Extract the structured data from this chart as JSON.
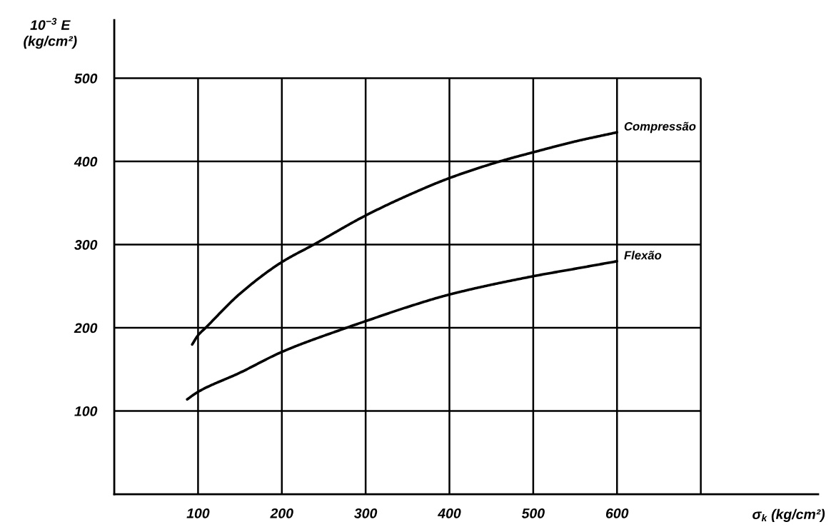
{
  "chart_data": {
    "type": "line",
    "xlabel": "σ$_{k}$ (kg/cm²)",
    "ylabel": "10$^{−3}$ E\n(kg/cm²)",
    "xlim": [
      0,
      840
    ],
    "ylim": [
      0,
      570
    ],
    "xticks": [
      100,
      200,
      300,
      400,
      500,
      600,
      {
        "value": 700,
        "label": null
      }
    ],
    "yticks": [
      100,
      200,
      300,
      400,
      500
    ],
    "grid": true,
    "series": [
      {
        "name": "Compressão",
        "color": "#000000",
        "x": [
          93,
          100,
          109,
          150,
          200,
          238,
          300,
          350,
          400,
          460,
          500,
          550,
          600
        ],
        "values": [
          180,
          191,
          200,
          241,
          279,
          300,
          335,
          359,
          380,
          400,
          411,
          424,
          435
        ]
      },
      {
        "name": "Flexão",
        "color": "#000000",
        "x": [
          87,
          100,
          150,
          200,
          277,
          300,
          350,
          400,
          500,
          550,
          600
        ],
        "values": [
          114,
          123,
          146,
          171,
          200,
          208,
          225,
          240,
          262,
          271,
          280
        ]
      }
    ]
  }
}
